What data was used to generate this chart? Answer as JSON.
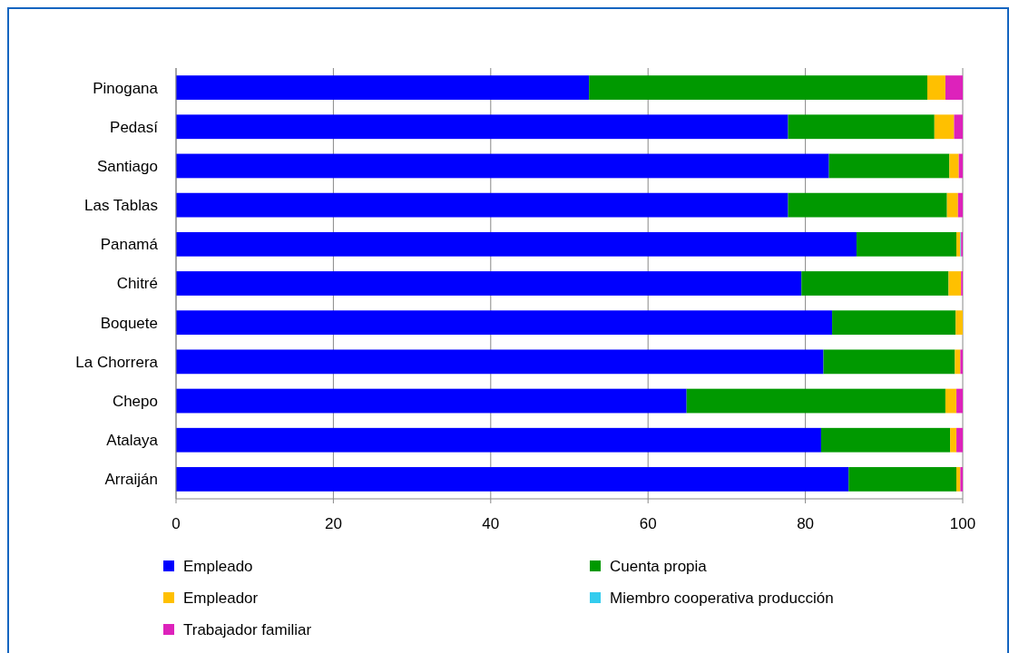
{
  "chart_data": {
    "type": "bar",
    "orientation": "horizontal",
    "stacked": true,
    "categories": [
      "Pinogana",
      "Pedasí",
      "Santiago",
      "Las Tablas",
      "Panamá",
      "Chitré",
      "Boquete",
      "La Chorrera",
      "Chepo",
      "Atalaya",
      "Arraiján"
    ],
    "series": [
      {
        "name": "Empleado",
        "color": "#0000ff",
        "values": [
          52.5,
          77.8,
          83.0,
          77.8,
          86.5,
          79.5,
          83.4,
          82.3,
          64.9,
          82.0,
          85.5
        ]
      },
      {
        "name": "Cuenta propia",
        "color": "#009900",
        "values": [
          43.0,
          18.6,
          15.3,
          20.2,
          12.7,
          18.7,
          15.7,
          16.7,
          32.9,
          16.4,
          13.7
        ]
      },
      {
        "name": "Empleador",
        "color": "#ffc000",
        "values": [
          2.3,
          2.5,
          1.2,
          1.4,
          0.5,
          1.6,
          0.9,
          0.7,
          1.4,
          0.8,
          0.5
        ]
      },
      {
        "name": "Miembro cooperativa producción",
        "color": "#33ccee",
        "values": [
          0,
          0,
          0,
          0,
          0.1,
          0,
          0,
          0,
          0,
          0,
          0
        ]
      },
      {
        "name": "Trabajador familiar",
        "color": "#dd22bb",
        "values": [
          2.2,
          1.1,
          0.5,
          0.6,
          0.2,
          0.2,
          0,
          0.3,
          0.8,
          0.8,
          0.3
        ]
      }
    ],
    "xlim": [
      0,
      100
    ],
    "xticks": [
      0,
      20,
      40,
      60,
      80,
      100
    ],
    "grid": "x",
    "legend": "bottom"
  }
}
